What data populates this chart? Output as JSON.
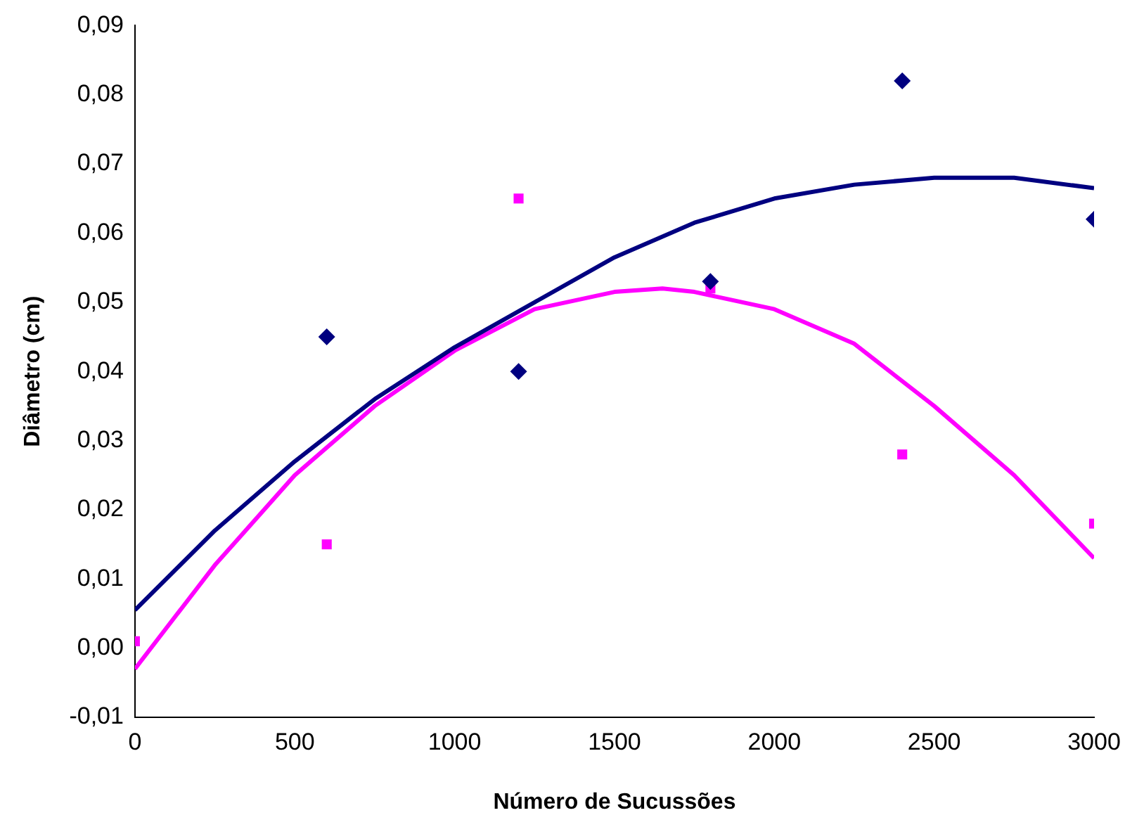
{
  "chart_data": {
    "type": "scatter",
    "xlabel": "Número de Sucussões",
    "ylabel": "Diâmetro (cm)",
    "x": [
      0,
      600,
      1200,
      1800,
      2400,
      3000
    ],
    "series": [
      {
        "type": "scatter",
        "color": "#000080",
        "marker": "diamond",
        "values": [
          null,
          0.045,
          0.04,
          0.053,
          0.082,
          0.062
        ]
      },
      {
        "type": "scatter",
        "color": "#ff00ff",
        "marker": "square",
        "values": [
          0.001,
          0.015,
          0.065,
          0.052,
          0.028,
          0.018
        ]
      },
      {
        "type": "line",
        "color": "#000080",
        "marker": "none",
        "x": [
          0,
          250,
          500,
          750,
          1000,
          1250,
          1500,
          1750,
          2000,
          2250,
          2500,
          2750,
          3000
        ],
        "values": [
          0.0055,
          0.017,
          0.027,
          0.036,
          0.0435,
          0.05,
          0.0565,
          0.0615,
          0.065,
          0.067,
          0.068,
          0.068,
          0.0665
        ]
      },
      {
        "type": "line",
        "color": "#ff00ff",
        "marker": "none",
        "x": [
          0,
          250,
          500,
          750,
          1000,
          1250,
          1500,
          1650,
          1750,
          2000,
          2250,
          2500,
          2750,
          3000
        ],
        "values": [
          -0.003,
          0.012,
          0.025,
          0.035,
          0.043,
          0.049,
          0.0515,
          0.052,
          0.0515,
          0.049,
          0.044,
          0.035,
          0.025,
          0.013
        ]
      }
    ],
    "xlim": [
      0,
      3000
    ],
    "xticks": [
      0,
      500,
      1000,
      1500,
      2000,
      2500,
      3000
    ],
    "ylim": [
      -0.01,
      0.09
    ],
    "yticks": [
      {
        "value": -0.01,
        "label": "-0,01"
      },
      {
        "value": 0,
        "label": "0,00"
      },
      {
        "value": 0.01,
        "label": "0,01"
      },
      {
        "value": 0.02,
        "label": "0,02"
      },
      {
        "value": 0.03,
        "label": "0,03"
      },
      {
        "value": 0.04,
        "label": "0,04"
      },
      {
        "value": 0.05,
        "label": "0,05"
      },
      {
        "value": 0.06,
        "label": "0,06"
      },
      {
        "value": 0.07,
        "label": "0,07"
      },
      {
        "value": 0.08,
        "label": "0,08"
      },
      {
        "value": 0.09,
        "label": "0,09"
      }
    ],
    "grid": false,
    "legend": false
  }
}
